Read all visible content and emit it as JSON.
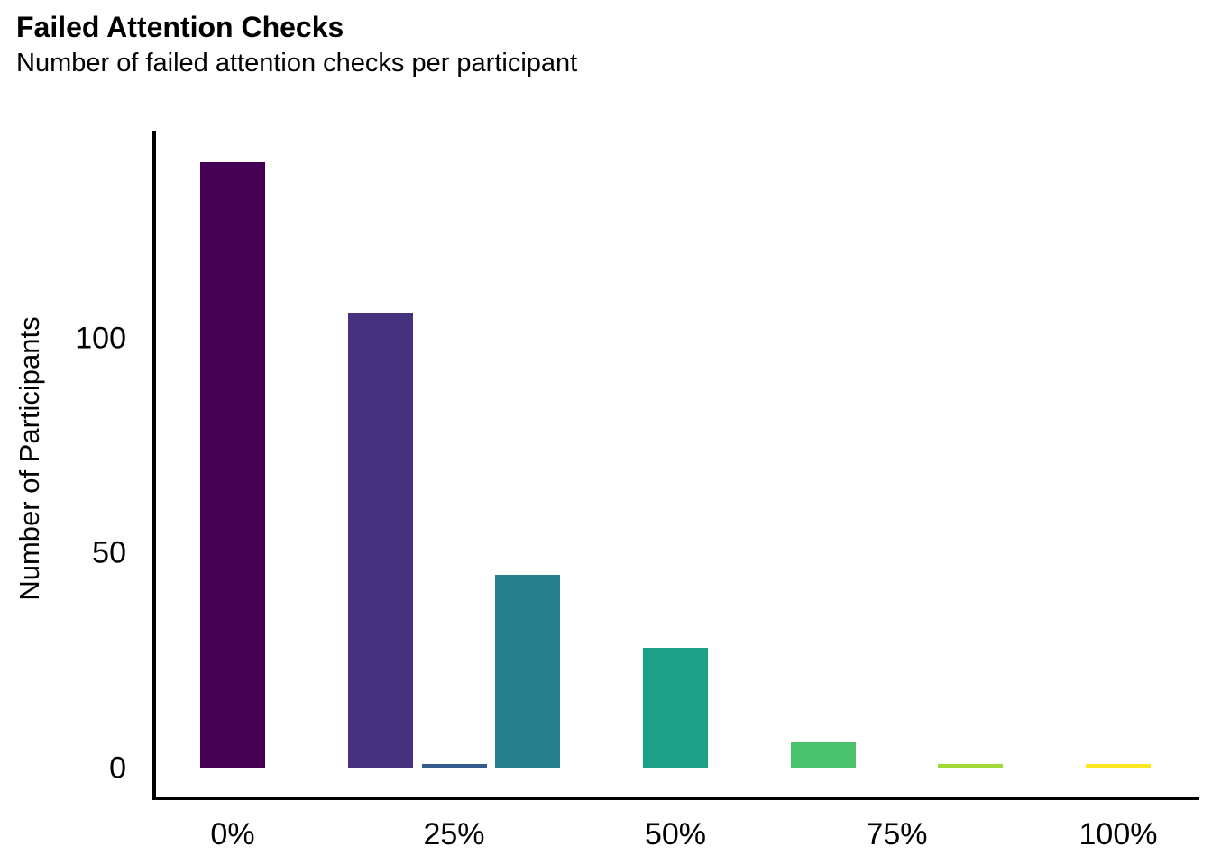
{
  "chart_data": {
    "type": "bar",
    "title": "Failed Attention Checks",
    "subtitle": "Number of failed attention checks per participant",
    "xlabel": "",
    "ylabel": "Number of Participants",
    "grid": false,
    "legend": "none",
    "axis_color": "#000000",
    "background_color": "#ffffff",
    "x_axis": {
      "tick_labels": [
        "0%",
        "25%",
        "50%",
        "75%",
        "100%"
      ],
      "tick_percent": [
        0,
        25,
        50,
        75,
        100
      ],
      "range_percent": [
        0,
        100
      ]
    },
    "y_axis": {
      "tick_labels": [
        "0",
        "50",
        "100"
      ],
      "ticks": [
        0,
        50,
        100
      ],
      "ylim": [
        0,
        148
      ]
    },
    "bars": [
      {
        "label": "0%",
        "x_percent": 0,
        "value": 141,
        "color": "#440154"
      },
      {
        "label": "16.7%",
        "x_percent": 16.7,
        "value": 106,
        "color": "#46327e"
      },
      {
        "label": "25%",
        "x_percent": 25,
        "value": 1,
        "color": "#365c8d"
      },
      {
        "label": "33.3%",
        "x_percent": 33.3,
        "value": 45,
        "color": "#277f8e"
      },
      {
        "label": "50%",
        "x_percent": 50,
        "value": 28,
        "color": "#1fa187"
      },
      {
        "label": "66.7%",
        "x_percent": 66.7,
        "value": 6,
        "color": "#4ac16d"
      },
      {
        "label": "83.3%",
        "x_percent": 83.3,
        "value": 1,
        "color": "#a0da39"
      },
      {
        "label": "100%",
        "x_percent": 100,
        "value": 1,
        "color": "#fde725"
      }
    ]
  }
}
